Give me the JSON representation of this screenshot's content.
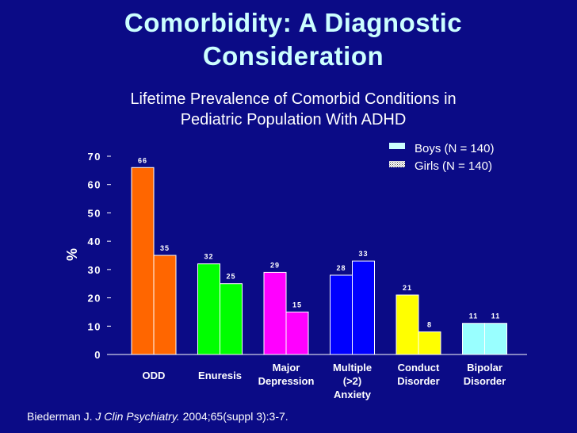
{
  "title_line1": "Comorbidity: A Diagnostic",
  "title_line2": "Consideration",
  "subtitle_line1": "Lifetime Prevalence of Comorbid Conditions in",
  "subtitle_line2": "Pediatric Population With ADHD",
  "citation": {
    "author": "Biederman J. ",
    "journal": "J Clin Psychiatry.",
    "details": " 2004;65(suppl 3):3-7."
  },
  "colors": {
    "background": "#0b0b86",
    "odd": "#ff6600",
    "enuresis": "#00ff00",
    "depression": "#ff00ff",
    "anxiety": "#0000ff",
    "conduct": "#ffff00",
    "bipolar": "#99ffff",
    "legend_boys": "#ccffff",
    "legend_girls": "#ffffff"
  },
  "chart_data": {
    "type": "bar",
    "title": "Lifetime Prevalence of Comorbid Conditions in Pediatric Population With ADHD",
    "xlabel": "",
    "ylabel": "%",
    "ylim": [
      0,
      70
    ],
    "yticks": [
      0,
      10,
      20,
      30,
      40,
      50,
      60,
      70
    ],
    "grid": false,
    "legend_position": "top-right",
    "categories": [
      [
        "ODD"
      ],
      [
        "Enuresis"
      ],
      [
        "Major",
        "Depression"
      ],
      [
        "Multiple",
        "(>2)",
        "Anxiety"
      ],
      [
        "Conduct",
        "Disorder"
      ],
      [
        "Bipolar",
        "Disorder"
      ]
    ],
    "series": [
      {
        "name": "Boys (N = 140)",
        "values": [
          66,
          32,
          29,
          28,
          21,
          11
        ]
      },
      {
        "name": "Girls (N = 140)",
        "values": [
          35,
          25,
          15,
          33,
          8,
          11
        ]
      }
    ]
  }
}
